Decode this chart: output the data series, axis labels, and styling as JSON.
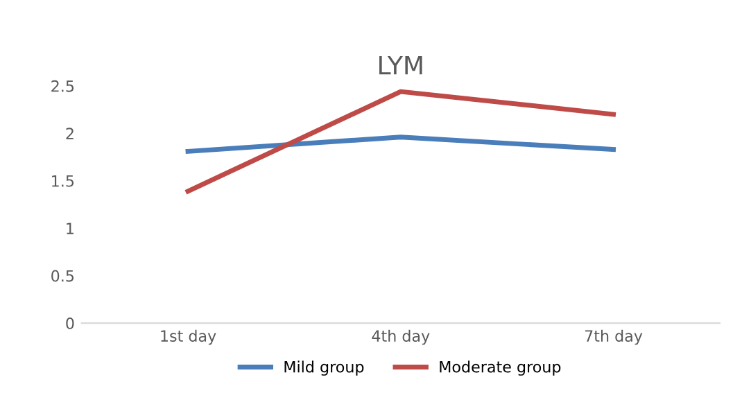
{
  "chart_data": {
    "type": "line",
    "title": "LYM",
    "categories": [
      "1st day",
      "4th day",
      "7th day"
    ],
    "series": [
      {
        "name": "Mild group",
        "color": "#4a7ebb",
        "values": [
          1.81,
          1.96,
          1.83
        ]
      },
      {
        "name": "Moderate group",
        "color": "#be4b48",
        "values": [
          1.39,
          2.44,
          2.2
        ]
      }
    ],
    "ylim": [
      0,
      2.5
    ],
    "yticks": [
      0,
      0.5,
      1,
      1.5,
      2,
      2.5
    ],
    "grid": false,
    "legend": "bottom",
    "marker": "none",
    "line_style": "solid"
  }
}
